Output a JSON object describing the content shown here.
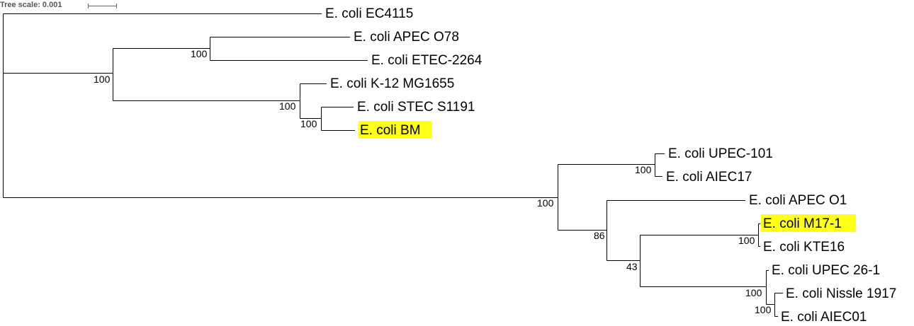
{
  "scale": {
    "label": "Tree scale: 0.001"
  },
  "highlight_color": "#ffff1a",
  "tips": [
    {
      "id": "ec4115",
      "label": "E. coli EC4115",
      "highlighted": false
    },
    {
      "id": "apec-o78",
      "label": "E. coli APEC O78",
      "highlighted": false
    },
    {
      "id": "etec-2264",
      "label": "E. coli ETEC-2264",
      "highlighted": false
    },
    {
      "id": "k12-mg1655",
      "label": "E. coli K-12 MG1655",
      "highlighted": false
    },
    {
      "id": "stec-s1191",
      "label": "E. coli STEC S1191",
      "highlighted": false
    },
    {
      "id": "bm",
      "label": "E. coli BM",
      "highlighted": true
    },
    {
      "id": "upec-101",
      "label": "E. coli UPEC-101",
      "highlighted": false
    },
    {
      "id": "aiec17",
      "label": "E. coli AIEC17",
      "highlighted": false
    },
    {
      "id": "apec-o1",
      "label": "E. coli APEC O1",
      "highlighted": false
    },
    {
      "id": "m17-1",
      "label": "E. coli M17-1",
      "highlighted": true
    },
    {
      "id": "kte16",
      "label": "E. coli KTE16",
      "highlighted": false
    },
    {
      "id": "upec-26-1",
      "label": "E. coli UPEC 26-1",
      "highlighted": false
    },
    {
      "id": "nissle-1917",
      "label": "E. coli Nissle 1917",
      "highlighted": false
    },
    {
      "id": "aiec01",
      "label": "E. coli AIEC01",
      "highlighted": false
    }
  ],
  "supports": [
    {
      "id": "apec-etec",
      "value": "100"
    },
    {
      "id": "upper-clade",
      "value": "100"
    },
    {
      "id": "k12-stec-bm",
      "value": "100"
    },
    {
      "id": "stec-bm",
      "value": "100"
    },
    {
      "id": "upec101-aiec17",
      "value": "100"
    },
    {
      "id": "lower-clade",
      "value": "100"
    },
    {
      "id": "apec-o1-group",
      "value": "86"
    },
    {
      "id": "m17-upec-group",
      "value": "43"
    },
    {
      "id": "m17-kte16",
      "value": "100"
    },
    {
      "id": "upec26-group",
      "value": "100"
    },
    {
      "id": "nissle-aiec01",
      "value": "100"
    }
  ]
}
